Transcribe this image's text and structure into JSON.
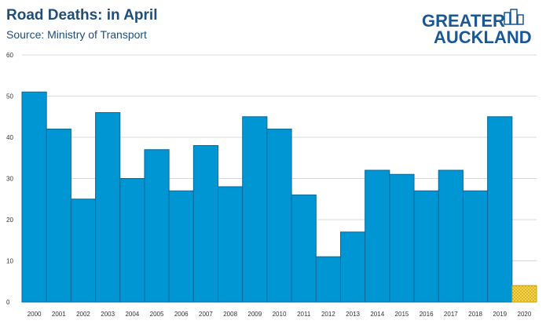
{
  "header": {
    "title": "Road Deaths: in April",
    "subtitle": "Source: Ministry of Transport"
  },
  "logo": {
    "line1": "GREATER",
    "line2": "AUCKLAND",
    "color": "#1a5796"
  },
  "colors": {
    "bar": "#0095d3",
    "bar_stroke": "#0a6a9a",
    "highlight": "#f5d44a",
    "grid": "#d9d9d9",
    "axis_text": "#333333"
  },
  "chart_data": {
    "type": "bar",
    "title": "Road Deaths: in April",
    "subtitle": "Source: Ministry of Transport",
    "xlabel": "",
    "ylabel": "",
    "ylim": [
      0,
      60
    ],
    "yticks": [
      0,
      10,
      20,
      30,
      40,
      50,
      60
    ],
    "grid": true,
    "categories": [
      "2000",
      "2001",
      "2002",
      "2003",
      "2004",
      "2005",
      "2006",
      "2007",
      "2008",
      "2009",
      "2010",
      "2011",
      "2012",
      "2013",
      "2014",
      "2015",
      "2016",
      "2017",
      "2018",
      "2019",
      "2020"
    ],
    "values": [
      51,
      42,
      25,
      46,
      30,
      37,
      27,
      38,
      28,
      45,
      42,
      26,
      11,
      17,
      32,
      31,
      27,
      32,
      27,
      45,
      4
    ],
    "highlight_category": "2020",
    "highlight_pattern": "dotted yellow"
  }
}
